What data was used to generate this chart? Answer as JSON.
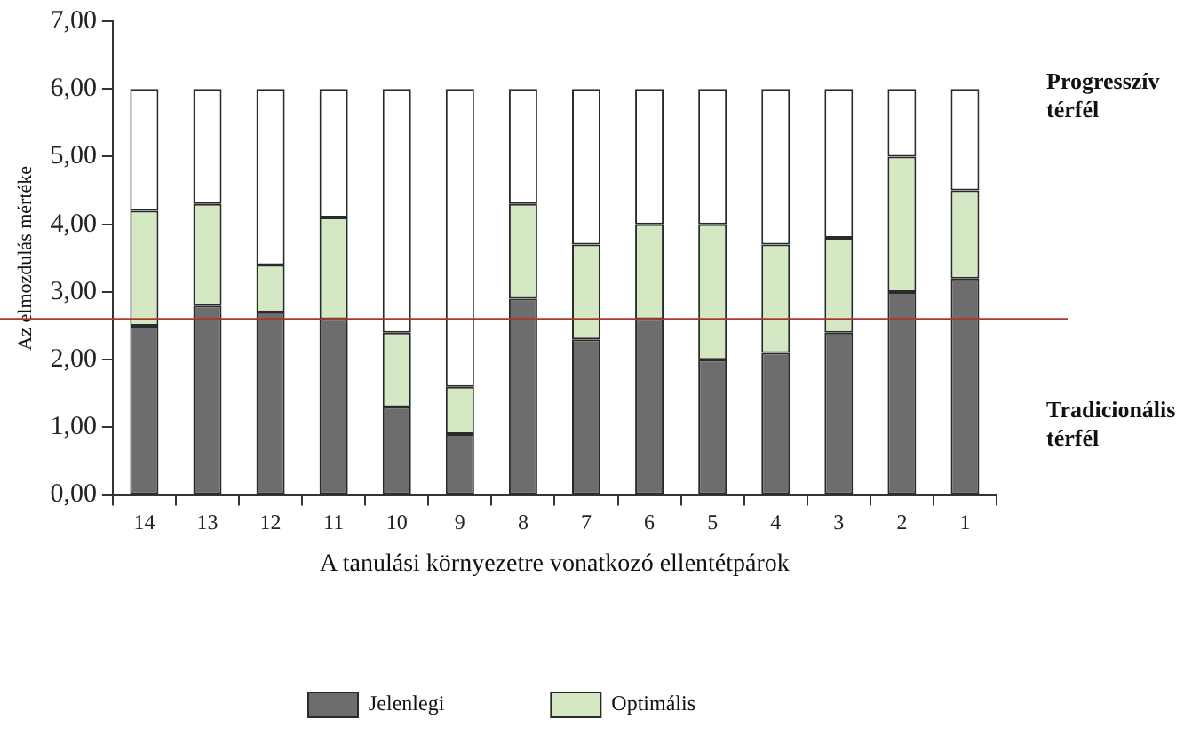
{
  "chart_data": {
    "type": "bar",
    "stacked": true,
    "ylabel": "Az elmozdulás mértéke",
    "xlabel": "A tanulási környezetre vonatkozó ellentétpárok",
    "categories": [
      "14",
      "13",
      "12",
      "11",
      "10",
      "9",
      "8",
      "7",
      "6",
      "5",
      "4",
      "3",
      "2",
      "1"
    ],
    "series": [
      {
        "name": "Jelenlegi",
        "color": "#6d6d6d",
        "values": [
          2.5,
          2.8,
          2.7,
          2.6,
          1.3,
          0.9,
          2.9,
          2.3,
          2.6,
          2.0,
          2.1,
          2.4,
          3.0,
          3.2
        ]
      },
      {
        "name": "Optimális",
        "color": "#d4e8c4",
        "values": [
          1.7,
          1.5,
          0.7,
          1.5,
          1.1,
          0.7,
          1.4,
          1.4,
          1.4,
          2.0,
          1.6,
          1.4,
          2.0,
          1.3
        ]
      },
      {
        "color": "#ffffff",
        "values": [
          1.8,
          1.7,
          2.6,
          1.9,
          3.6,
          4.4,
          1.7,
          2.3,
          2.0,
          2.0,
          2.3,
          2.2,
          1.0,
          1.5
        ]
      }
    ],
    "ylim": [
      0,
      7
    ],
    "yticks": [
      {
        "value": 0,
        "label": "0,00"
      },
      {
        "value": 1,
        "label": "1,00"
      },
      {
        "value": 2,
        "label": "2,00"
      },
      {
        "value": 3,
        "label": "3,00"
      },
      {
        "value": 4,
        "label": "4,00"
      },
      {
        "value": 5,
        "label": "5,00"
      },
      {
        "value": 6,
        "label": "6,00"
      },
      {
        "value": 7,
        "label": "7,00"
      }
    ],
    "ref_lines": [
      {
        "axis": "y",
        "value": 2.6,
        "color": "#a83a2c"
      }
    ],
    "annotations": [
      "Progresszív térfél",
      "Tradicionális térfél"
    ],
    "grid": false,
    "legend": "bottom"
  }
}
